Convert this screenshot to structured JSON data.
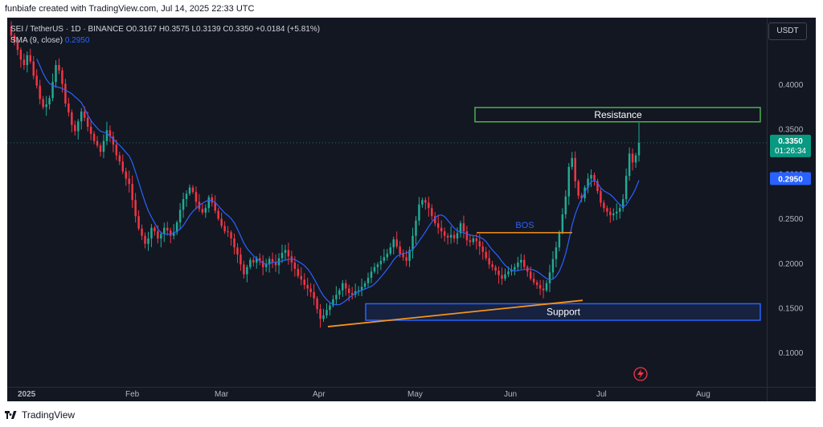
{
  "header": {
    "created_by": "funbiafe created with TradingView.com, Jul 14, 2025 22:33 UTC"
  },
  "legend": {
    "symbol": "SEI / TetherUS · 1D · BINANCE",
    "ohlc": "O0.3167  H0.3575  L0.3139  C0.3350  +0.0184 (+5.81%)",
    "sma_label": "SMA (9, close)",
    "sma_value": "0.2950"
  },
  "currency_button": "USDT",
  "footer": {
    "brand": "TradingView"
  },
  "colors": {
    "background": "#131722",
    "up": "#22ab94",
    "down": "#f23645",
    "sma": "#2962ff",
    "resistance": "#4caf50",
    "support": "#2962ff",
    "trendline": "#f7931a"
  },
  "chart_data": {
    "type": "candlestick",
    "title": "SEI / TetherUS · 1D · BINANCE",
    "x_ticks": [
      "2025",
      "Feb",
      "Mar",
      "Apr",
      "May",
      "Jun",
      "Jul",
      "Aug"
    ],
    "y_ticks": [
      "0.4000",
      "0.3500",
      "0.3000",
      "0.2500",
      "0.2000",
      "0.1500",
      "0.1000"
    ],
    "y_tick_values": [
      0.4,
      0.35,
      0.3,
      0.25,
      0.2,
      0.15,
      0.1
    ],
    "ylim": [
      0.062,
      0.475
    ],
    "last_price": {
      "value": 0.335,
      "label": "0.3350",
      "countdown": "01:26:34"
    },
    "sma_price": {
      "value": 0.295,
      "label": "0.2950"
    },
    "close_series": [
      0.455,
      0.448,
      0.439,
      0.428,
      0.422,
      0.433,
      0.426,
      0.41,
      0.399,
      0.384,
      0.375,
      0.378,
      0.385,
      0.403,
      0.422,
      0.416,
      0.401,
      0.379,
      0.369,
      0.355,
      0.348,
      0.359,
      0.37,
      0.363,
      0.353,
      0.345,
      0.337,
      0.332,
      0.325,
      0.337,
      0.349,
      0.342,
      0.333,
      0.321,
      0.314,
      0.303,
      0.295,
      0.289,
      0.271,
      0.253,
      0.239,
      0.231,
      0.222,
      0.228,
      0.24,
      0.236,
      0.228,
      0.233,
      0.24,
      0.237,
      0.231,
      0.235,
      0.246,
      0.26,
      0.272,
      0.278,
      0.285,
      0.28,
      0.269,
      0.261,
      0.257,
      0.262,
      0.274,
      0.268,
      0.259,
      0.25,
      0.242,
      0.236,
      0.235,
      0.228,
      0.218,
      0.21,
      0.199,
      0.188,
      0.196,
      0.204,
      0.201,
      0.206,
      0.203,
      0.196,
      0.199,
      0.205,
      0.201,
      0.198,
      0.206,
      0.212,
      0.215,
      0.208,
      0.201,
      0.194,
      0.186,
      0.182,
      0.176,
      0.172,
      0.168,
      0.161,
      0.149,
      0.138,
      0.142,
      0.148,
      0.153,
      0.16,
      0.165,
      0.17,
      0.178,
      0.172,
      0.167,
      0.165,
      0.169,
      0.17,
      0.174,
      0.178,
      0.184,
      0.191,
      0.196,
      0.199,
      0.203,
      0.207,
      0.211,
      0.218,
      0.227,
      0.219,
      0.211,
      0.207,
      0.203,
      0.215,
      0.231,
      0.248,
      0.266,
      0.271,
      0.268,
      0.262,
      0.253,
      0.245,
      0.24,
      0.236,
      0.231,
      0.229,
      0.232,
      0.228,
      0.234,
      0.245,
      0.236,
      0.226,
      0.224,
      0.228,
      0.225,
      0.219,
      0.213,
      0.206,
      0.199,
      0.196,
      0.192,
      0.187,
      0.183,
      0.188,
      0.191,
      0.193,
      0.196,
      0.201,
      0.204,
      0.196,
      0.191,
      0.183,
      0.179,
      0.176,
      0.172,
      0.17,
      0.178,
      0.19,
      0.205,
      0.218,
      0.235,
      0.255,
      0.275,
      0.308,
      0.318,
      0.292,
      0.276,
      0.273,
      0.285,
      0.295,
      0.299,
      0.292,
      0.281,
      0.268,
      0.262,
      0.258,
      0.254,
      0.256,
      0.258,
      0.262,
      0.272,
      0.298,
      0.323,
      0.313,
      0.321,
      0.335
    ],
    "sma_period": 9,
    "annotations": [
      {
        "kind": "zone",
        "label": "Resistance",
        "y_range": [
          0.3585,
          0.3745
        ]
      },
      {
        "kind": "zone",
        "label": "Support",
        "y_range": [
          0.1365,
          0.155
        ]
      },
      {
        "kind": "line",
        "label": "BOS",
        "price": 0.2345
      },
      {
        "kind": "trendline",
        "label": "",
        "from_price": 0.1294,
        "to_price": 0.1588
      }
    ]
  }
}
